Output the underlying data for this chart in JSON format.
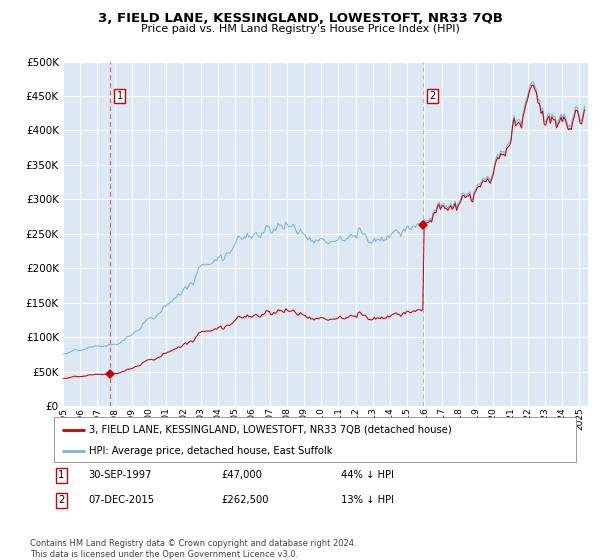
{
  "title": "3, FIELD LANE, KESSINGLAND, LOWESTOFT, NR33 7QB",
  "subtitle": "Price paid vs. HM Land Registry's House Price Index (HPI)",
  "bg_color": "#dce9f5",
  "plot_bg_color": "#dce9f5",
  "grid_color": "#c8d8e8",
  "hpi_color": "#7ab4d8",
  "price_color": "#cc0000",
  "sale1_date": 1997.75,
  "sale1_price": 47000,
  "sale2_date": 2015.92,
  "sale2_price": 262500,
  "xmin": 1995,
  "xmax": 2025.5,
  "ymin": 0,
  "ymax": 500000,
  "yticks": [
    0,
    50000,
    100000,
    150000,
    200000,
    250000,
    300000,
    350000,
    400000,
    450000,
    500000
  ],
  "ytick_labels": [
    "£0",
    "£50K",
    "£100K",
    "£150K",
    "£200K",
    "£250K",
    "£300K",
    "£350K",
    "£400K",
    "£450K",
    "£500K"
  ],
  "legend_line1": "3, FIELD LANE, KESSINGLAND, LOWESTOFT, NR33 7QB (detached house)",
  "legend_line2": "HPI: Average price, detached house, East Suffolk",
  "note1_date": "30-SEP-1997",
  "note1_price": "£47,000",
  "note1_hpi": "44% ↓ HPI",
  "note2_date": "07-DEC-2015",
  "note2_price": "£262,500",
  "note2_hpi": "13% ↓ HPI",
  "footer": "Contains HM Land Registry data © Crown copyright and database right 2024.\nThis data is licensed under the Open Government Licence v3.0."
}
